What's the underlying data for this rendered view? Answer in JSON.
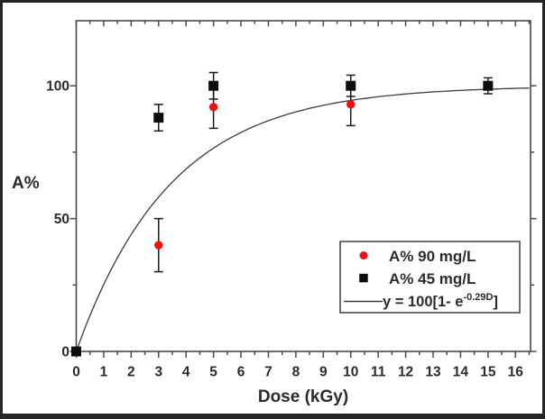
{
  "window": {
    "background": "#ffffff",
    "border_color": "#262626"
  },
  "chart_data": {
    "type": "scatter",
    "title": "",
    "xlabel": "Dose (kGy)",
    "ylabel": "A%",
    "xlim": [
      0,
      16.55
    ],
    "ylim": [
      0,
      124.5
    ],
    "grid": false,
    "x_major_ticks": [
      0,
      1,
      2,
      3,
      4,
      5,
      6,
      7,
      8,
      9,
      10,
      11,
      12,
      13,
      14,
      15,
      16
    ],
    "x_minor_tick_step": 0.5,
    "y_major_ticks": [
      0,
      50,
      100
    ],
    "y_minor_ticks": [
      25,
      75
    ],
    "axis_color": "#4a4a4a",
    "text_color": "#2b2b2b",
    "errorbar_color": "#1a1a1a",
    "legend_position": "lower-right",
    "series": [
      {
        "name": "A% 90 mg/L",
        "marker": "circle",
        "color": "#ee1111",
        "points": [
          {
            "x": 3,
            "y": 40,
            "yerr": 10
          },
          {
            "x": 5,
            "y": 92,
            "yerr": 8
          },
          {
            "x": 10,
            "y": 93,
            "yerr": 8
          }
        ]
      },
      {
        "name": "A% 45 mg/L",
        "marker": "square",
        "color": "#0d0d0d",
        "points": [
          {
            "x": 0,
            "y": 0,
            "yerr": 0
          },
          {
            "x": 3,
            "y": 88,
            "yerr": 5
          },
          {
            "x": 5,
            "y": 100,
            "yerr": 5
          },
          {
            "x": 10,
            "y": 100,
            "yerr": 4
          },
          {
            "x": 15,
            "y": 100,
            "yerr": 3
          }
        ]
      }
    ],
    "fit_curve": {
      "label_base": "y = 100[1- e",
      "label_exponent": "-0.29D",
      "label_close": "]",
      "amplitude": 100,
      "rate": 0.29,
      "color": "#3c3c3c"
    }
  }
}
